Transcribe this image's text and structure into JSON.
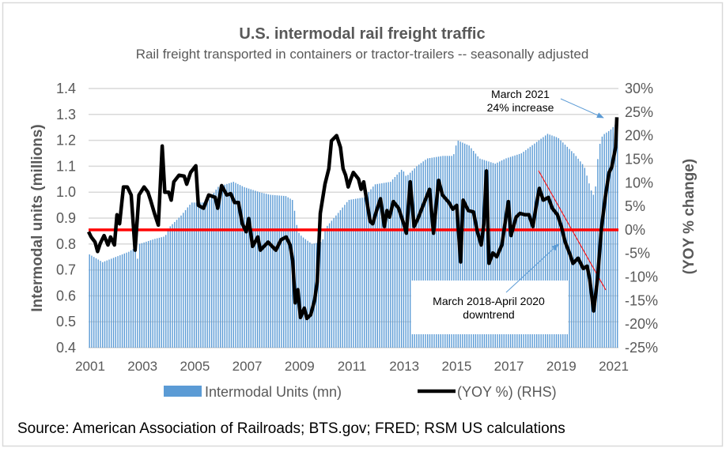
{
  "chart_data": {
    "type": "bar+line",
    "title": "U.S. intermodal rail freight traffic",
    "subtitle": "Rail freight transported in containers or tractor-trailers -- seasonally adjusted",
    "ylabel": "Intermodal units (millions)",
    "y2label": "(YOY % change)",
    "xlim": [
      2001,
      2021.25
    ],
    "ylim": [
      0.4,
      1.4
    ],
    "y2lim": [
      -25,
      30
    ],
    "x_ticks": [
      "2001",
      "2003",
      "2005",
      "2007",
      "2009",
      "2011",
      "2013",
      "2015",
      "2017",
      "2019",
      "2021"
    ],
    "y_ticks": [
      "0.4",
      "0.5",
      "0.6",
      "0.7",
      "0.8",
      "0.9",
      "1.0",
      "1.1",
      "1.2",
      "1.3",
      "1.4"
    ],
    "y2_ticks": [
      "-25%",
      "-20%",
      "-15%",
      "-10%",
      "-5%",
      "0%",
      "5%",
      "10%",
      "15%",
      "20%",
      "25%",
      "30%"
    ],
    "grid": true,
    "legend_placement": "bottom",
    "series": [
      {
        "name": "Intermodal Units (mn)",
        "type": "bar",
        "axis": "left",
        "color": "#5b9bd5",
        "points": [
          [
            2001.0,
            0.76
          ],
          [
            2001.5,
            0.73
          ],
          [
            2002.0,
            0.75
          ],
          [
            2002.5,
            0.77
          ],
          [
            2002.8,
            0.79
          ],
          [
            2002.85,
            0.72
          ],
          [
            2002.9,
            0.8
          ],
          [
            2003.5,
            0.82
          ],
          [
            2003.9,
            0.83
          ],
          [
            2004.0,
            0.86
          ],
          [
            2004.5,
            0.91
          ],
          [
            2004.9,
            0.96
          ],
          [
            2005.5,
            0.96
          ],
          [
            2005.9,
            1.02
          ],
          [
            2006.5,
            1.04
          ],
          [
            2006.9,
            1.02
          ],
          [
            2007.5,
            1.0
          ],
          [
            2007.9,
            0.99
          ],
          [
            2008.5,
            0.985
          ],
          [
            2008.75,
            0.97
          ],
          [
            2008.85,
            0.92
          ],
          [
            2008.95,
            0.85
          ],
          [
            2009.1,
            0.83
          ],
          [
            2009.5,
            0.8
          ],
          [
            2009.9,
            0.81
          ],
          [
            2010.0,
            0.86
          ],
          [
            2010.5,
            0.92
          ],
          [
            2010.9,
            0.97
          ],
          [
            2011.5,
            0.98
          ],
          [
            2011.9,
            1.03
          ],
          [
            2012.5,
            1.04
          ],
          [
            2012.95,
            1.09
          ],
          [
            2013.1,
            1.06
          ],
          [
            2013.5,
            1.1
          ],
          [
            2013.9,
            1.13
          ],
          [
            2014.5,
            1.14
          ],
          [
            2014.9,
            1.14
          ],
          [
            2015.05,
            1.2
          ],
          [
            2015.5,
            1.18
          ],
          [
            2015.9,
            1.13
          ],
          [
            2016.5,
            1.11
          ],
          [
            2016.9,
            1.13
          ],
          [
            2017.5,
            1.15
          ],
          [
            2017.9,
            1.18
          ],
          [
            2018.5,
            1.225
          ],
          [
            2018.9,
            1.21
          ],
          [
            2019.5,
            1.15
          ],
          [
            2019.9,
            1.1
          ],
          [
            2020.15,
            1.01
          ],
          [
            2020.3,
            0.98
          ],
          [
            2020.45,
            1.17
          ],
          [
            2020.6,
            1.22
          ],
          [
            2020.9,
            1.24
          ],
          [
            2021.17,
            1.27
          ]
        ]
      },
      {
        "name": "(YOY %) (RHS)",
        "type": "line",
        "axis": "right",
        "color": "#000000",
        "points": [
          [
            2001.0,
            -0.4
          ],
          [
            2001.1,
            -1.5
          ],
          [
            2001.25,
            -2.6
          ],
          [
            2001.35,
            -4.6
          ],
          [
            2001.45,
            -2.9
          ],
          [
            2001.6,
            -1.2
          ],
          [
            2001.75,
            -3.2
          ],
          [
            2001.85,
            -1.5
          ],
          [
            2002.0,
            -3.2
          ],
          [
            2002.1,
            3.2
          ],
          [
            2002.2,
            1.3
          ],
          [
            2002.35,
            9.1
          ],
          [
            2002.5,
            9.1
          ],
          [
            2002.65,
            7.4
          ],
          [
            2002.8,
            -4.3
          ],
          [
            2002.95,
            7.4
          ],
          [
            2003.15,
            9.1
          ],
          [
            2003.3,
            8.0
          ],
          [
            2003.4,
            6.3
          ],
          [
            2003.55,
            3.5
          ],
          [
            2003.7,
            1.0
          ],
          [
            2003.85,
            17.8
          ],
          [
            2003.95,
            8.0
          ],
          [
            2004.1,
            8.0
          ],
          [
            2004.2,
            6.3
          ],
          [
            2004.3,
            10.2
          ],
          [
            2004.5,
            11.6
          ],
          [
            2004.7,
            11.4
          ],
          [
            2004.8,
            9.7
          ],
          [
            2004.95,
            12.2
          ],
          [
            2005.15,
            13.6
          ],
          [
            2005.25,
            5.2
          ],
          [
            2005.45,
            4.6
          ],
          [
            2005.65,
            7.4
          ],
          [
            2005.9,
            6.9
          ],
          [
            2006.0,
            4.6
          ],
          [
            2006.15,
            9.4
          ],
          [
            2006.35,
            7.4
          ],
          [
            2006.5,
            7.7
          ],
          [
            2006.65,
            5.8
          ],
          [
            2006.8,
            5.8
          ],
          [
            2006.95,
            1.3
          ],
          [
            2007.1,
            -0.4
          ],
          [
            2007.2,
            2.4
          ],
          [
            2007.35,
            -3.5
          ],
          [
            2007.55,
            -1.5
          ],
          [
            2007.65,
            -4.3
          ],
          [
            2007.95,
            -2.6
          ],
          [
            2008.25,
            -4.3
          ],
          [
            2008.45,
            -2.1
          ],
          [
            2008.65,
            -1.5
          ],
          [
            2008.8,
            -3.2
          ],
          [
            2008.9,
            -6.5
          ],
          [
            2009.0,
            -15.5
          ],
          [
            2009.1,
            -12.7
          ],
          [
            2009.2,
            -18.6
          ],
          [
            2009.35,
            -16.6
          ],
          [
            2009.45,
            -18.8
          ],
          [
            2009.6,
            -18.0
          ],
          [
            2009.75,
            -14.9
          ],
          [
            2009.85,
            -11.0
          ],
          [
            2009.97,
            3.5
          ],
          [
            2010.15,
            9.7
          ],
          [
            2010.3,
            13.0
          ],
          [
            2010.4,
            18.9
          ],
          [
            2010.6,
            20.0
          ],
          [
            2010.75,
            17.5
          ],
          [
            2010.85,
            13.0
          ],
          [
            2010.95,
            11.6
          ],
          [
            2011.05,
            9.1
          ],
          [
            2011.15,
            10.8
          ],
          [
            2011.25,
            12.2
          ],
          [
            2011.45,
            10.8
          ],
          [
            2011.55,
            8.6
          ],
          [
            2011.65,
            10.2
          ],
          [
            2011.75,
            6.9
          ],
          [
            2011.9,
            1.8
          ],
          [
            2012.0,
            1.3
          ],
          [
            2012.15,
            4.1
          ],
          [
            2012.3,
            6.6
          ],
          [
            2012.45,
            0.7
          ],
          [
            2012.55,
            4.1
          ],
          [
            2012.65,
            2.7
          ],
          [
            2012.8,
            6.0
          ],
          [
            2013.0,
            4.6
          ],
          [
            2013.2,
            1.3
          ],
          [
            2013.3,
            -0.7
          ],
          [
            2013.45,
            10.2
          ],
          [
            2013.6,
            0.7
          ],
          [
            2013.75,
            2.4
          ],
          [
            2013.95,
            5.2
          ],
          [
            2014.2,
            8.6
          ],
          [
            2014.35,
            -0.7
          ],
          [
            2014.55,
            10.5
          ],
          [
            2014.7,
            7.4
          ],
          [
            2014.95,
            5.8
          ],
          [
            2015.1,
            4.4
          ],
          [
            2015.25,
            5.2
          ],
          [
            2015.4,
            -6.8
          ],
          [
            2015.5,
            6.3
          ],
          [
            2015.7,
            4.1
          ],
          [
            2015.9,
            3.8
          ],
          [
            2016.05,
            -0.4
          ],
          [
            2016.2,
            -3.2
          ],
          [
            2016.3,
            1.3
          ],
          [
            2016.4,
            12.5
          ],
          [
            2016.5,
            -7.1
          ],
          [
            2016.65,
            -4.9
          ],
          [
            2016.8,
            -5.7
          ],
          [
            2017.0,
            -3.2
          ],
          [
            2017.15,
            2.4
          ],
          [
            2017.25,
            6.0
          ],
          [
            2017.35,
            -1.2
          ],
          [
            2017.55,
            2.7
          ],
          [
            2017.7,
            3.5
          ],
          [
            2017.9,
            3.2
          ],
          [
            2018.05,
            3.2
          ],
          [
            2018.2,
            0.7
          ],
          [
            2018.35,
            5.8
          ],
          [
            2018.45,
            8.8
          ],
          [
            2018.6,
            6.3
          ],
          [
            2018.8,
            6.9
          ],
          [
            2018.95,
            4.6
          ],
          [
            2019.15,
            3.2
          ],
          [
            2019.3,
            0.7
          ],
          [
            2019.45,
            -2.6
          ],
          [
            2019.65,
            -5.4
          ],
          [
            2019.75,
            -7.1
          ],
          [
            2019.95,
            -6.0
          ],
          [
            2020.15,
            -8.2
          ],
          [
            2020.3,
            -7.7
          ],
          [
            2020.4,
            -10.5
          ],
          [
            2020.55,
            -17.2
          ],
          [
            2020.7,
            -10.5
          ],
          [
            2020.85,
            0.2
          ],
          [
            2021.0,
            6.9
          ],
          [
            2021.15,
            12.2
          ],
          [
            2021.25,
            13.3
          ],
          [
            2021.4,
            17.5
          ],
          [
            2021.45,
            23.9
          ]
        ]
      }
    ],
    "reference_line": {
      "axis": "right",
      "value": 0,
      "color": "#ff0000"
    },
    "annotations": [
      {
        "lines": [
          "March 2021",
          "24% increase"
        ]
      },
      {
        "lines": [
          "March 2018-April 2020",
          "downtrend"
        ]
      }
    ]
  },
  "source": "Source: American Association of Railroads; BTS.gov; FRED; RSM US calculations"
}
